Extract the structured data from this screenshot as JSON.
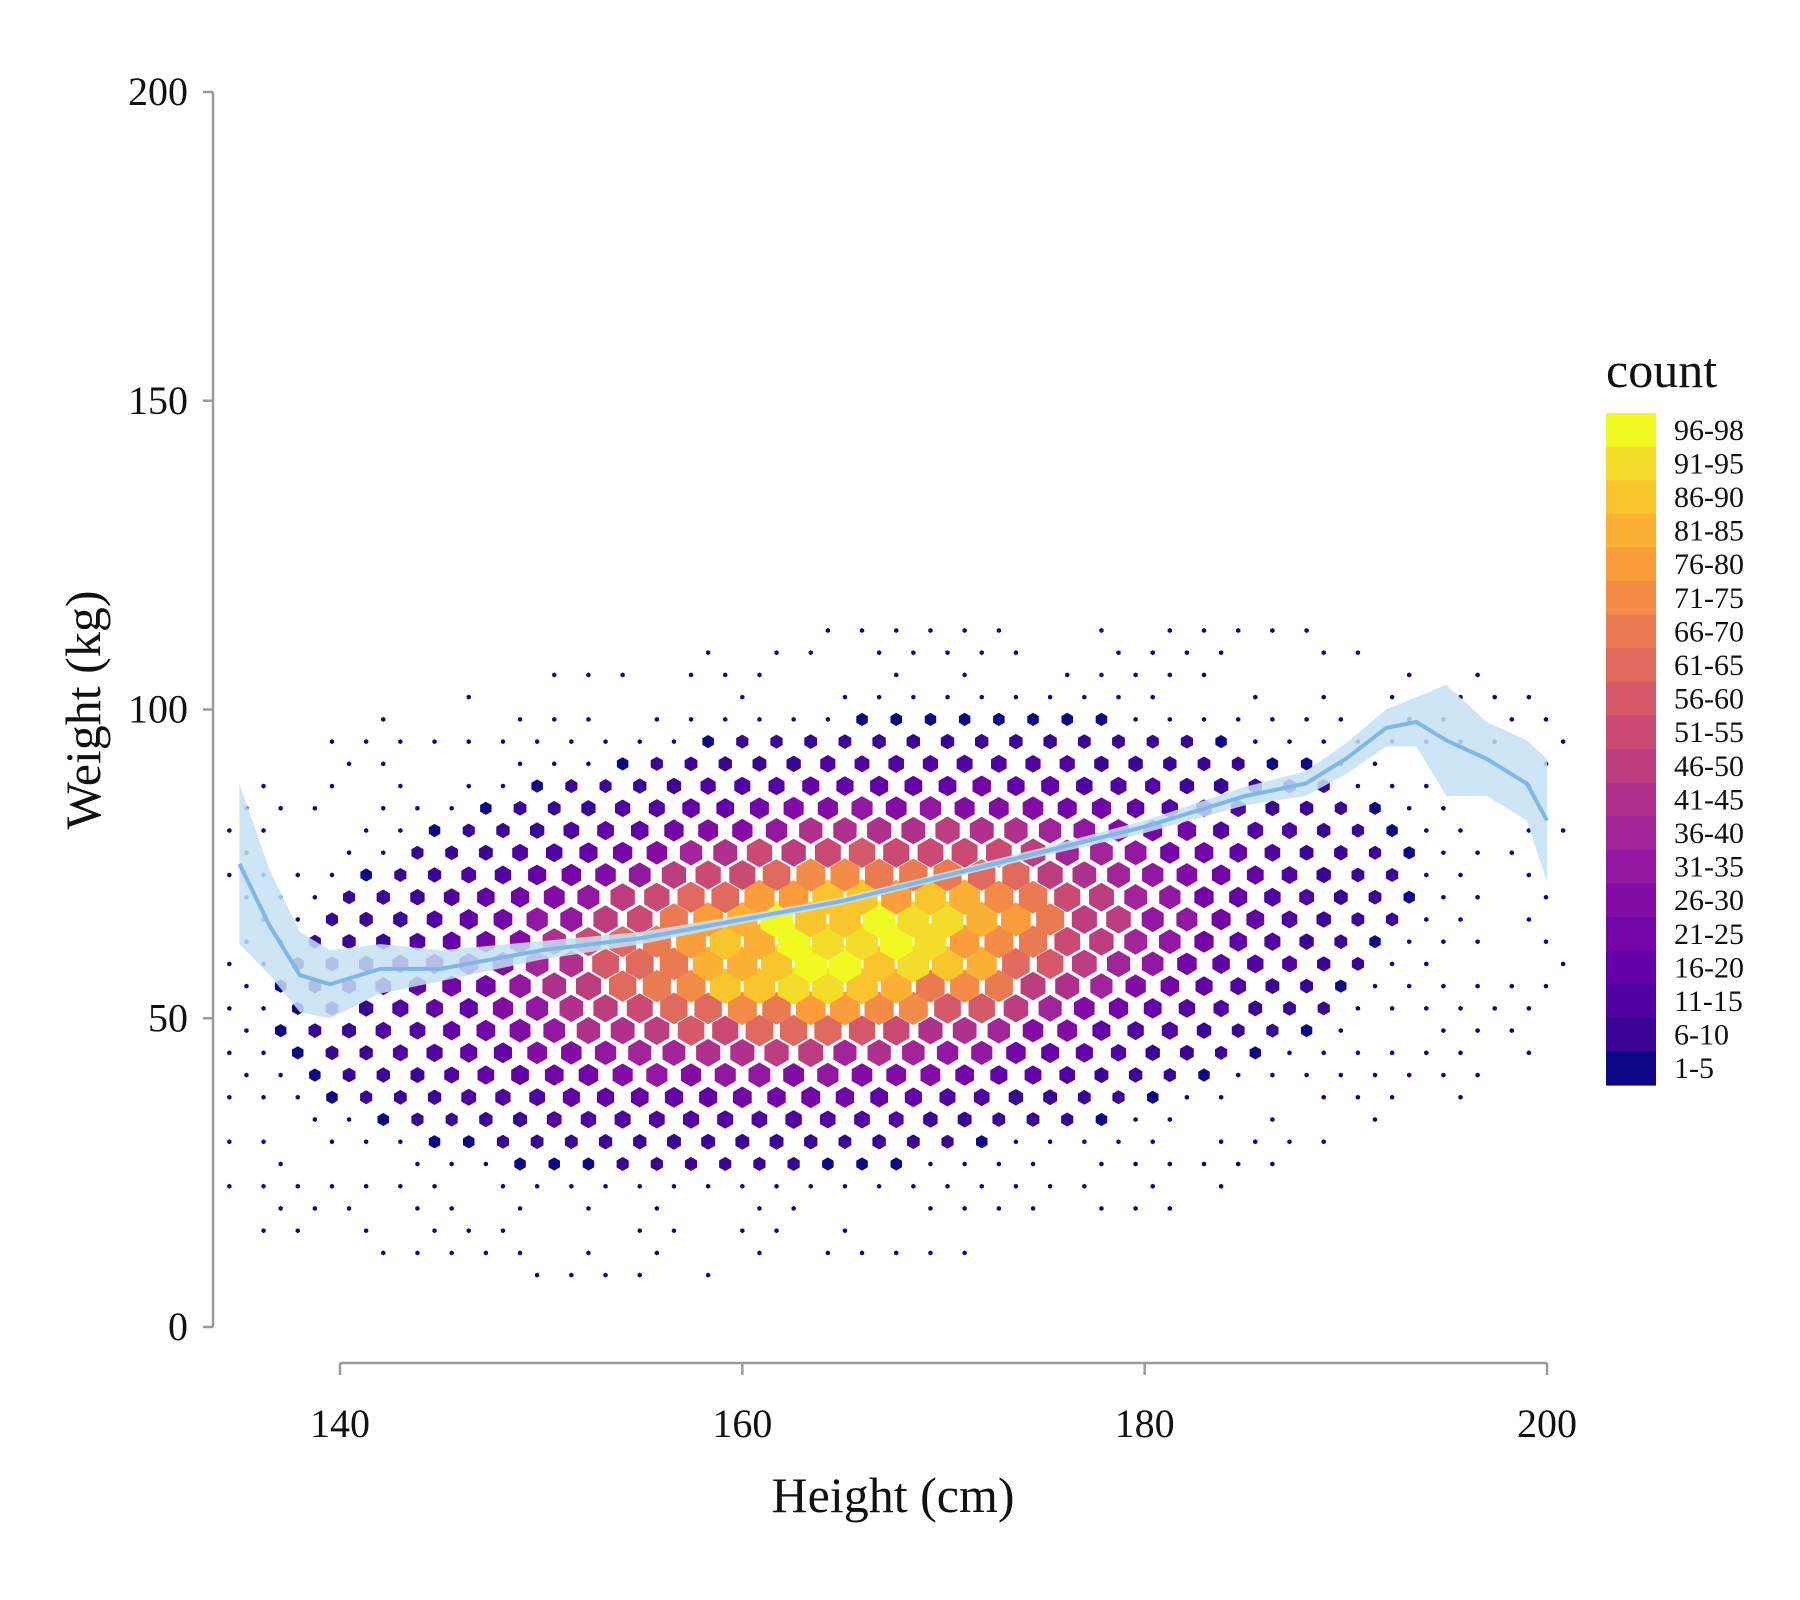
{
  "chart_data": {
    "type": "heatmap",
    "subtype": "hexbin with smoothed trend line",
    "xlabel": "Height (cm)",
    "ylabel": "Weight (kg)",
    "xlim": [
      134,
      200
    ],
    "ylim": [
      0,
      200
    ],
    "x_ticks": [
      "140",
      "160",
      "180",
      "200"
    ],
    "x_tick_values": [
      140,
      160,
      180,
      200
    ],
    "y_ticks": [
      "0",
      "50",
      "100",
      "150",
      "200"
    ],
    "y_tick_values": [
      0,
      50,
      100,
      150,
      200
    ],
    "grid": false,
    "legend": {
      "title": "count",
      "placement": "right",
      "bins": [
        {
          "label": "96-98",
          "color": "#f0f921"
        },
        {
          "label": "91-95",
          "color": "#f4dc2a"
        },
        {
          "label": "86-90",
          "color": "#f8c62c"
        },
        {
          "label": "81-85",
          "color": "#fcb134"
        },
        {
          "label": "76-80",
          "color": "#fb9d3b"
        },
        {
          "label": "71-75",
          "color": "#f48b46"
        },
        {
          "label": "66-70",
          "color": "#ea7a52"
        },
        {
          "label": "61-65",
          "color": "#e06a5d"
        },
        {
          "label": "56-60",
          "color": "#d55969"
        },
        {
          "label": "51-55",
          "color": "#ca4a73"
        },
        {
          "label": "46-50",
          "color": "#bd3e7f"
        },
        {
          "label": "41-45",
          "color": "#b0318c"
        },
        {
          "label": "36-40",
          "color": "#a12598"
        },
        {
          "label": "31-35",
          "color": "#9217a1"
        },
        {
          "label": "26-30",
          "color": "#830ca6"
        },
        {
          "label": "21-25",
          "color": "#7304a8"
        },
        {
          "label": "16-20",
          "color": "#6300a7"
        },
        {
          "label": "11-15",
          "color": "#5003a2"
        },
        {
          "label": "6-10",
          "color": "#3a0497"
        },
        {
          "label": "1-5",
          "color": "#0d0887"
        }
      ]
    },
    "hexbin_center": {
      "height": 165,
      "weight": 62
    },
    "trend_line": {
      "color": "#7fb8e6",
      "band_color": "#c6e0f4",
      "points": [
        {
          "x": 135.0,
          "y": 75,
          "lo": 62,
          "hi": 88
        },
        {
          "x": 136.5,
          "y": 65,
          "lo": 57,
          "hi": 74
        },
        {
          "x": 138.0,
          "y": 57,
          "lo": 51,
          "hi": 64
        },
        {
          "x": 139.5,
          "y": 55.5,
          "lo": 50,
          "hi": 61
        },
        {
          "x": 142.0,
          "y": 58,
          "lo": 54,
          "hi": 62
        },
        {
          "x": 145.0,
          "y": 58,
          "lo": 56,
          "hi": 61
        },
        {
          "x": 150.0,
          "y": 61,
          "lo": 59.5,
          "hi": 62.5
        },
        {
          "x": 155.0,
          "y": 63,
          "lo": 62,
          "hi": 64
        },
        {
          "x": 160.0,
          "y": 66,
          "lo": 65.3,
          "hi": 66.7
        },
        {
          "x": 165.0,
          "y": 69,
          "lo": 68.4,
          "hi": 69.6
        },
        {
          "x": 170.0,
          "y": 73,
          "lo": 72.4,
          "hi": 73.6
        },
        {
          "x": 175.0,
          "y": 77,
          "lo": 76.3,
          "hi": 77.7
        },
        {
          "x": 180.0,
          "y": 81,
          "lo": 80.0,
          "hi": 82.0
        },
        {
          "x": 185.0,
          "y": 86,
          "lo": 84.5,
          "hi": 87.5
        },
        {
          "x": 188.0,
          "y": 88,
          "lo": 86,
          "hi": 90
        },
        {
          "x": 190.0,
          "y": 92,
          "lo": 89.5,
          "hi": 94.5
        },
        {
          "x": 192.0,
          "y": 97,
          "lo": 94,
          "hi": 100
        },
        {
          "x": 193.5,
          "y": 98,
          "lo": 94,
          "hi": 102
        },
        {
          "x": 195.0,
          "y": 95,
          "lo": 86,
          "hi": 104
        },
        {
          "x": 197.0,
          "y": 92,
          "lo": 86,
          "hi": 98
        },
        {
          "x": 199.0,
          "y": 88,
          "lo": 82,
          "hi": 95
        },
        {
          "x": 200.0,
          "y": 82,
          "lo": 72,
          "hi": 92
        }
      ]
    }
  }
}
